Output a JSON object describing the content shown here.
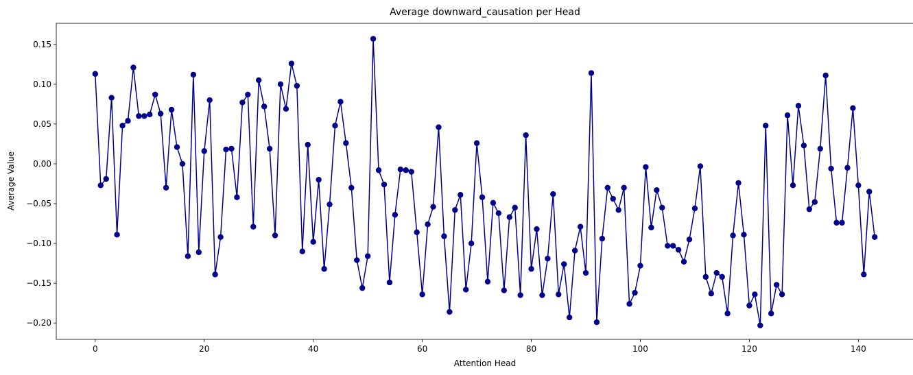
{
  "chart_data": {
    "type": "line",
    "title": "Average downward_causation per Head",
    "xlabel": "Attention Head",
    "ylabel": "Average Value",
    "xlim": [
      -7.15,
      150.15
    ],
    "ylim": [
      -0.2205,
      0.1765
    ],
    "xticks": [
      0,
      20,
      40,
      60,
      80,
      100,
      120,
      140
    ],
    "yticks": [
      -0.2,
      -0.15,
      -0.1,
      -0.05,
      0.0,
      0.05,
      0.1,
      0.15
    ],
    "ytick_labels": [
      "−0.20",
      "−0.15",
      "−0.10",
      "−0.05",
      "0.00",
      "0.05",
      "0.10",
      "0.15"
    ],
    "grid": false,
    "legend": "none",
    "series": [
      {
        "color": "#00008b",
        "marker": "circle",
        "values": [
          0.113,
          -0.027,
          -0.019,
          0.083,
          -0.089,
          0.048,
          0.054,
          0.121,
          0.06,
          0.06,
          0.062,
          0.087,
          0.063,
          -0.03,
          0.068,
          0.021,
          0.0,
          -0.116,
          0.112,
          -0.111,
          0.016,
          0.08,
          -0.139,
          -0.092,
          0.018,
          0.019,
          -0.042,
          0.077,
          0.087,
          -0.079,
          0.105,
          0.072,
          0.019,
          -0.09,
          0.1,
          0.069,
          0.126,
          0.098,
          -0.11,
          0.024,
          -0.098,
          -0.02,
          -0.132,
          -0.051,
          0.048,
          0.078,
          0.026,
          -0.03,
          -0.121,
          -0.156,
          -0.116,
          0.157,
          -0.008,
          -0.026,
          -0.149,
          -0.064,
          -0.007,
          -0.008,
          -0.01,
          -0.086,
          -0.164,
          -0.076,
          -0.054,
          0.046,
          -0.091,
          -0.186,
          -0.058,
          -0.039,
          -0.158,
          -0.1,
          0.026,
          -0.042,
          -0.148,
          -0.049,
          -0.062,
          -0.159,
          -0.067,
          -0.055,
          -0.165,
          0.036,
          -0.132,
          -0.082,
          -0.165,
          -0.119,
          -0.038,
          -0.164,
          -0.126,
          -0.193,
          -0.109,
          -0.079,
          -0.137,
          0.114,
          -0.199,
          -0.094,
          -0.03,
          -0.044,
          -0.058,
          -0.03,
          -0.176,
          -0.162,
          -0.128,
          -0.004,
          -0.08,
          -0.033,
          -0.055,
          -0.103,
          -0.103,
          -0.108,
          -0.123,
          -0.095,
          -0.056,
          -0.003,
          -0.142,
          -0.163,
          -0.137,
          -0.142,
          -0.188,
          -0.09,
          -0.024,
          -0.089,
          -0.178,
          -0.164,
          -0.203,
          0.048,
          -0.188,
          -0.152,
          -0.164,
          0.061,
          -0.027,
          0.073,
          0.023,
          -0.057,
          -0.048,
          0.019,
          0.111,
          -0.006,
          -0.074,
          -0.074,
          -0.005,
          0.07,
          -0.027,
          -0.139,
          -0.035,
          -0.092
        ]
      }
    ]
  }
}
